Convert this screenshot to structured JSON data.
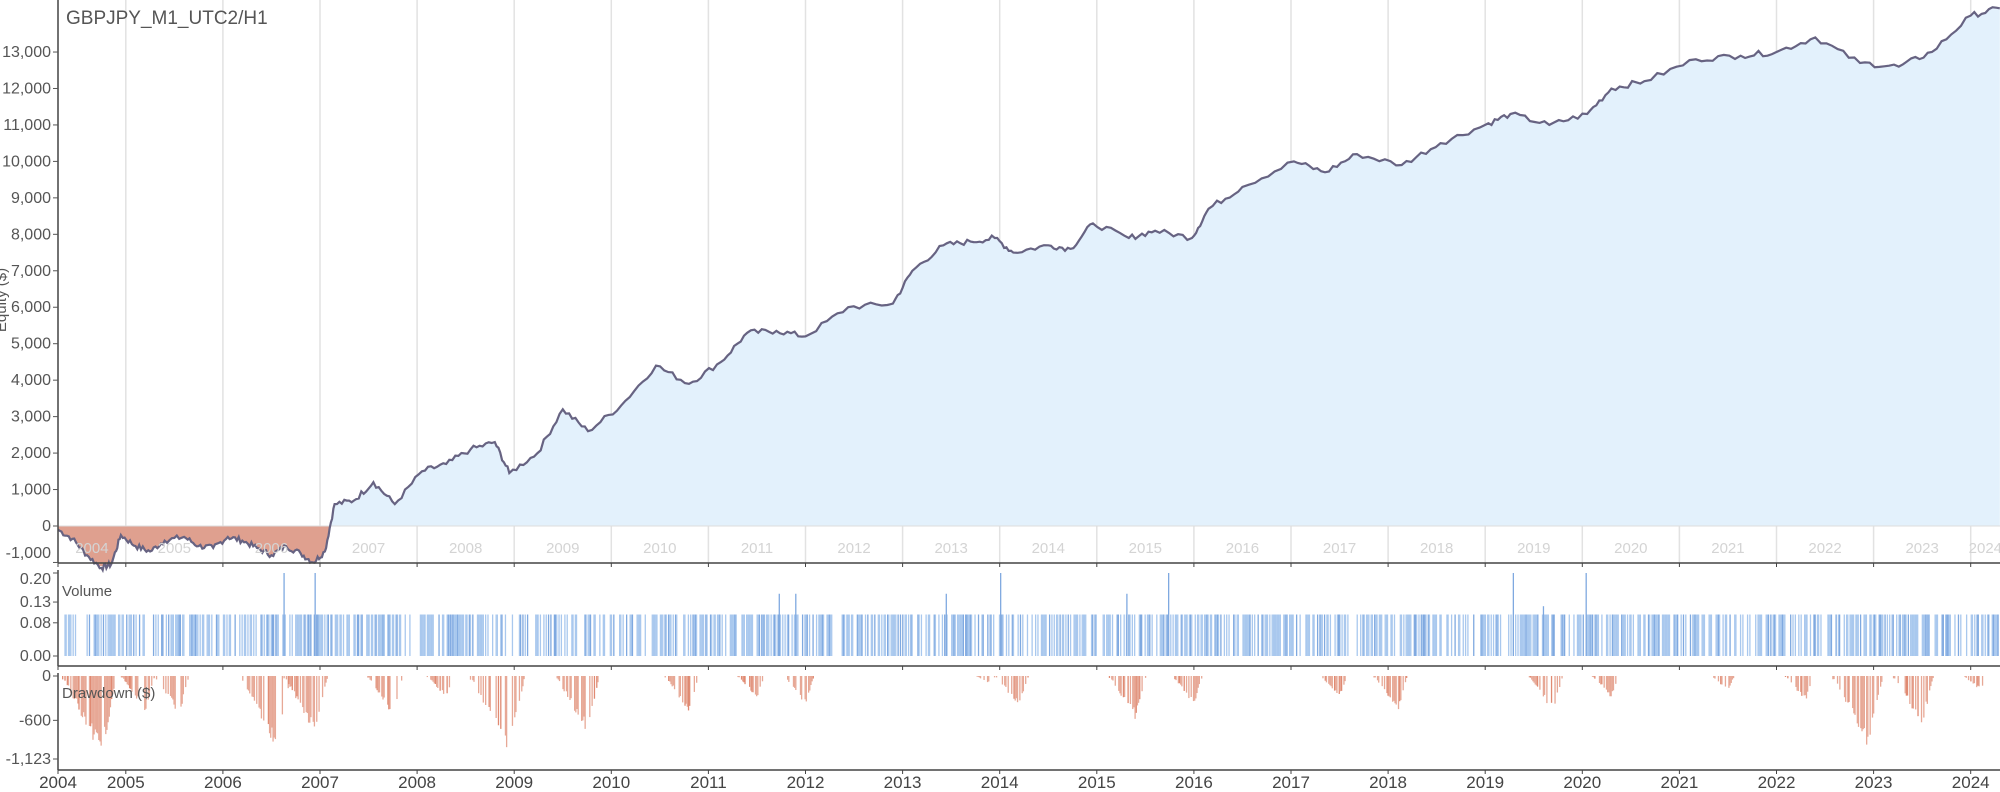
{
  "chart_data": [
    {
      "type": "area",
      "title": "GBPJPY_M1_UTC2/H1",
      "ylabel": "Equity ($)",
      "xlim": [
        2004.3,
        2024.3
      ],
      "ylim": [
        -1300,
        14400
      ],
      "yticks": [
        -1000,
        0,
        1000,
        2000,
        3000,
        4000,
        5000,
        6000,
        7000,
        8000,
        9000,
        10000,
        11000,
        12000,
        13000
      ],
      "ytick_labels": [
        "-1,000",
        "0",
        "1,000",
        "2,000",
        "3,000",
        "4,000",
        "5,000",
        "6,000",
        "7,000",
        "8,000",
        "9,000",
        "10,000",
        "11,000",
        "12,000",
        "13,000"
      ],
      "year_labels": [
        "2004",
        "2005",
        "2006",
        "2007",
        "2008",
        "2009",
        "2010",
        "2011",
        "2012",
        "2013",
        "2014",
        "2015",
        "2016",
        "2017",
        "2018",
        "2019",
        "2020",
        "2021",
        "2022",
        "2023",
        "2024"
      ],
      "grid": "vertical",
      "colors": {
        "line": "#676382",
        "positive_fill": "#e3f1fc",
        "negative_fill": "#dfa08f"
      },
      "points": [
        [
          2004.3,
          -100
        ],
        [
          2004.45,
          -350
        ],
        [
          2004.6,
          -800
        ],
        [
          2004.75,
          -1150
        ],
        [
          2004.85,
          -1050
        ],
        [
          2004.95,
          -250
        ],
        [
          2005.1,
          -550
        ],
        [
          2005.25,
          -700
        ],
        [
          2005.4,
          -400
        ],
        [
          2005.6,
          -300
        ],
        [
          2005.75,
          -550
        ],
        [
          2005.9,
          -600
        ],
        [
          2006.05,
          -300
        ],
        [
          2006.2,
          -400
        ],
        [
          2006.35,
          -600
        ],
        [
          2006.5,
          -800
        ],
        [
          2006.65,
          -550
        ],
        [
          2006.8,
          -750
        ],
        [
          2006.93,
          -1000
        ],
        [
          2007.05,
          -700
        ],
        [
          2007.15,
          600
        ],
        [
          2007.35,
          700
        ],
        [
          2007.55,
          1200
        ],
        [
          2007.77,
          600
        ],
        [
          2008.05,
          1500
        ],
        [
          2008.3,
          1700
        ],
        [
          2008.55,
          2100
        ],
        [
          2008.8,
          2300
        ],
        [
          2008.95,
          1450
        ],
        [
          2009.24,
          2000
        ],
        [
          2009.5,
          3200
        ],
        [
          2009.76,
          2600
        ],
        [
          2010.1,
          3300
        ],
        [
          2010.46,
          4400
        ],
        [
          2010.8,
          3900
        ],
        [
          2011.13,
          4500
        ],
        [
          2011.4,
          5300
        ],
        [
          2011.7,
          5350
        ],
        [
          2012.0,
          5200
        ],
        [
          2012.44,
          6000
        ],
        [
          2012.9,
          6100
        ],
        [
          2013.1,
          7000
        ],
        [
          2013.42,
          7700
        ],
        [
          2013.7,
          7800
        ],
        [
          2013.95,
          7900
        ],
        [
          2014.14,
          7500
        ],
        [
          2014.5,
          7700
        ],
        [
          2014.73,
          7600
        ],
        [
          2014.96,
          8300
        ],
        [
          2015.33,
          7900
        ],
        [
          2015.6,
          8100
        ],
        [
          2015.98,
          7900
        ],
        [
          2016.15,
          8700
        ],
        [
          2016.5,
          9300
        ],
        [
          2017.03,
          10000
        ],
        [
          2017.35,
          9700
        ],
        [
          2017.68,
          10200
        ],
        [
          2018.14,
          9900
        ],
        [
          2018.54,
          10500
        ],
        [
          2019.0,
          11000
        ],
        [
          2019.26,
          11300
        ],
        [
          2019.66,
          11000
        ],
        [
          2020.05,
          11300
        ],
        [
          2020.3,
          12000
        ],
        [
          2020.64,
          12200
        ],
        [
          2021.17,
          12800
        ],
        [
          2021.63,
          12900
        ],
        [
          2022.0,
          13000
        ],
        [
          2022.4,
          13400
        ],
        [
          2022.86,
          12700
        ],
        [
          2023.26,
          12600
        ],
        [
          2023.6,
          13000
        ],
        [
          2024.0,
          14000
        ],
        [
          2024.3,
          14200
        ]
      ]
    },
    {
      "type": "bar",
      "label": "Volume",
      "ylim": [
        0,
        0.2
      ],
      "yticks": [
        0,
        0.08,
        0.13,
        0.2
      ],
      "ytick_labels": [
        "0.00",
        "0.08",
        "0.13",
        "0.20"
      ],
      "color": "#a9c8ee",
      "typical_value": 0.1,
      "spikes": [
        [
          2006.63,
          0.2
        ],
        [
          2006.95,
          0.2
        ],
        [
          2011.73,
          0.15
        ],
        [
          2011.9,
          0.15
        ],
        [
          2013.45,
          0.15
        ],
        [
          2014.01,
          0.2
        ],
        [
          2015.31,
          0.15
        ],
        [
          2015.74,
          0.2
        ],
        [
          2019.29,
          0.2
        ],
        [
          2019.6,
          0.12
        ],
        [
          2020.04,
          0.2
        ]
      ]
    },
    {
      "type": "bar",
      "label": "Drawdown ($)",
      "ylim": [
        -1123,
        0
      ],
      "yticks": [
        0,
        -600,
        -1123
      ],
      "ytick_labels": [
        "0",
        "-600",
        "-1,123"
      ],
      "color": "#e7a896",
      "troughs": [
        [
          2004.75,
          -1123
        ],
        [
          2005.2,
          -500
        ],
        [
          2005.55,
          -550
        ],
        [
          2006.55,
          -1000
        ],
        [
          2006.95,
          -800
        ],
        [
          2007.75,
          -550
        ],
        [
          2008.3,
          -300
        ],
        [
          2008.95,
          -1123
        ],
        [
          2009.75,
          -800
        ],
        [
          2010.8,
          -500
        ],
        [
          2011.5,
          -300
        ],
        [
          2012.0,
          -400
        ],
        [
          2013.9,
          -100
        ],
        [
          2014.2,
          -450
        ],
        [
          2015.4,
          -600
        ],
        [
          2016.0,
          -400
        ],
        [
          2017.5,
          -300
        ],
        [
          2018.1,
          -500
        ],
        [
          2019.7,
          -500
        ],
        [
          2020.3,
          -300
        ],
        [
          2021.5,
          -200
        ],
        [
          2022.3,
          -350
        ],
        [
          2022.95,
          -1000
        ],
        [
          2023.5,
          -700
        ],
        [
          2024.1,
          -200
        ]
      ],
      "xtick_labels": [
        "2004",
        "2005",
        "2006",
        "2007",
        "2008",
        "2009",
        "2010",
        "2011",
        "2012",
        "2013",
        "2014",
        "2015",
        "2016",
        "2017",
        "2018",
        "2019",
        "2020",
        "2021",
        "2022",
        "2023",
        "2024"
      ]
    }
  ]
}
